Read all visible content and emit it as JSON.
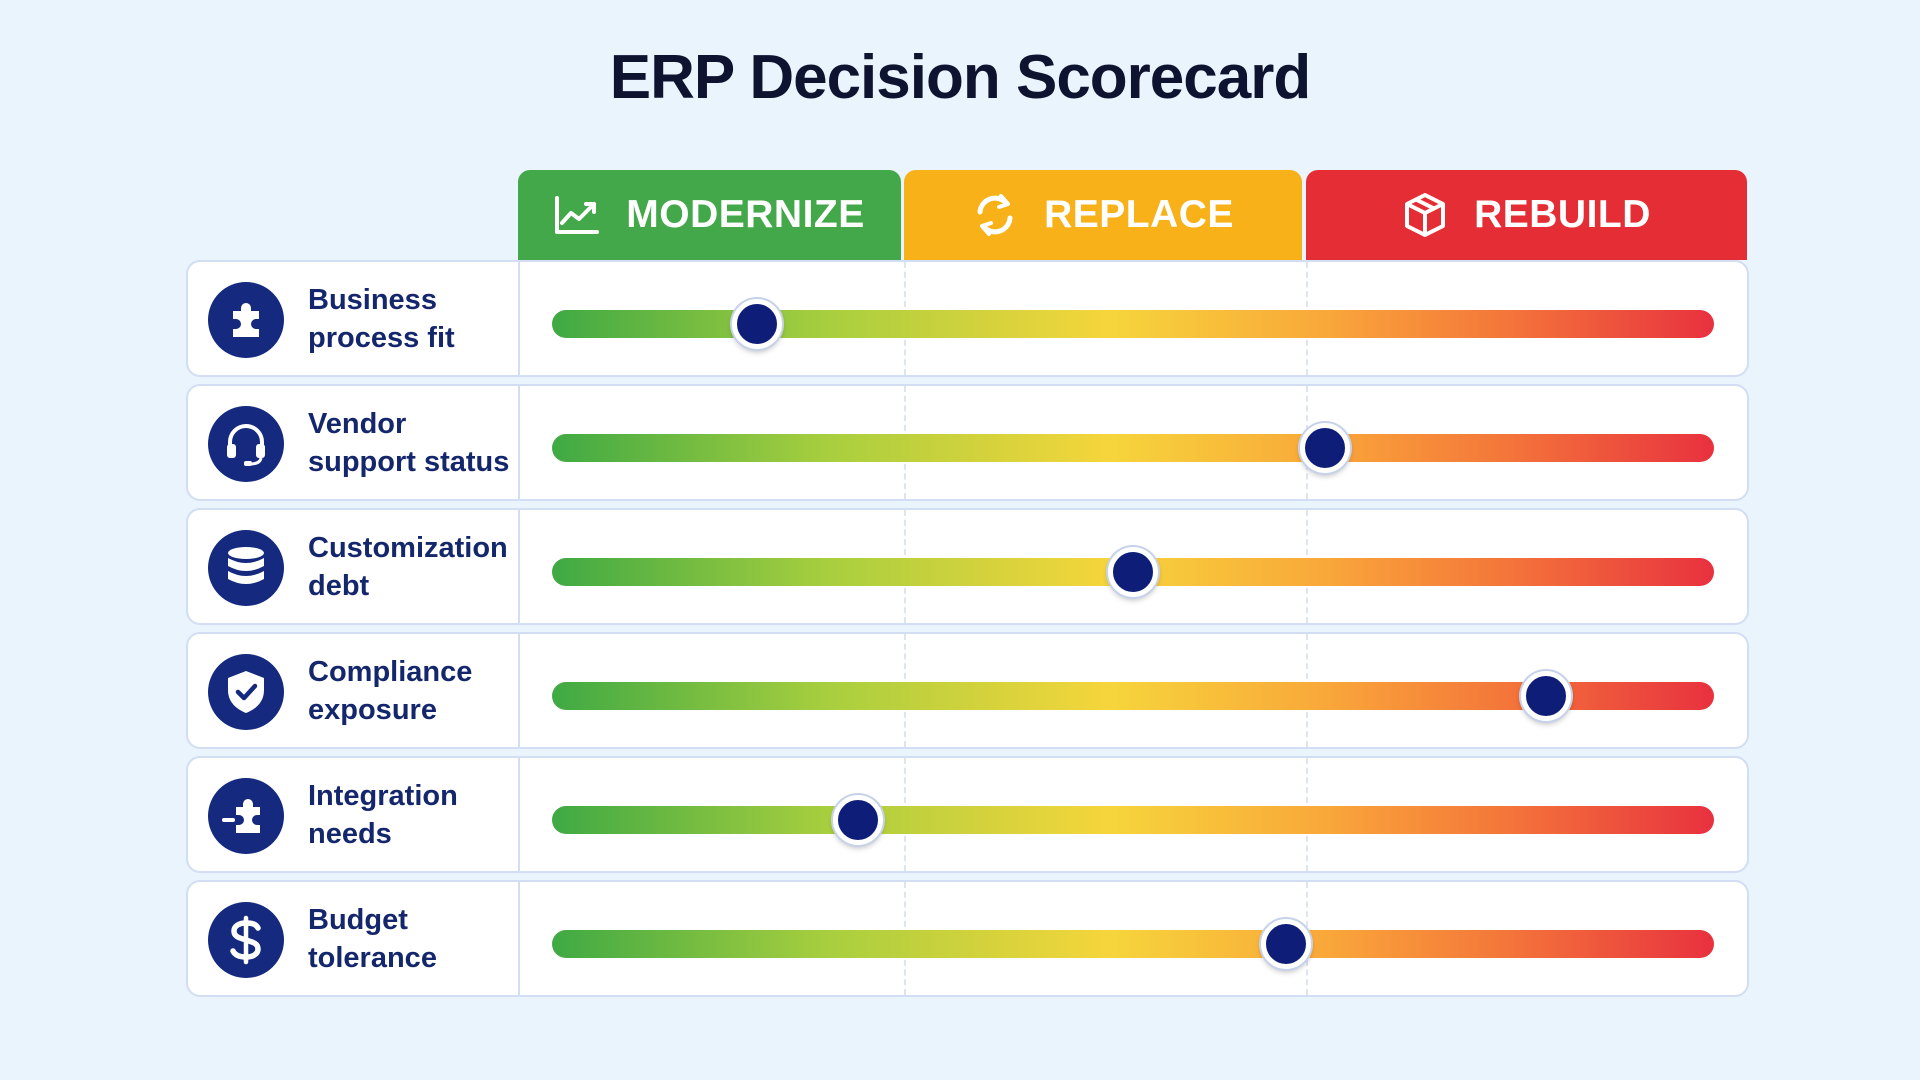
{
  "title": "ERP Decision Scorecard",
  "columns": [
    {
      "label": "MODERNIZE",
      "icon": "trend-chart-icon",
      "color": "#43a84a"
    },
    {
      "label": "REPLACE",
      "icon": "refresh-icon",
      "color": "#f8b118"
    },
    {
      "label": "REBUILD",
      "icon": "cube-icon",
      "color": "#e42d34"
    }
  ],
  "rows": [
    {
      "label": "Business process fit",
      "icon": "puzzle-icon",
      "score": 0.176
    },
    {
      "label": "Vendor support status",
      "icon": "headset-icon",
      "score": 0.665
    },
    {
      "label": "Customization debt",
      "icon": "database-icon",
      "score": 0.5
    },
    {
      "label": "Compliance exposure",
      "icon": "shield-check-icon",
      "score": 0.855
    },
    {
      "label": "Integration needs",
      "icon": "puzzle-connect-icon",
      "score": 0.263
    },
    {
      "label": "Budget tolerance",
      "icon": "dollar-icon",
      "score": 0.632
    }
  ]
}
